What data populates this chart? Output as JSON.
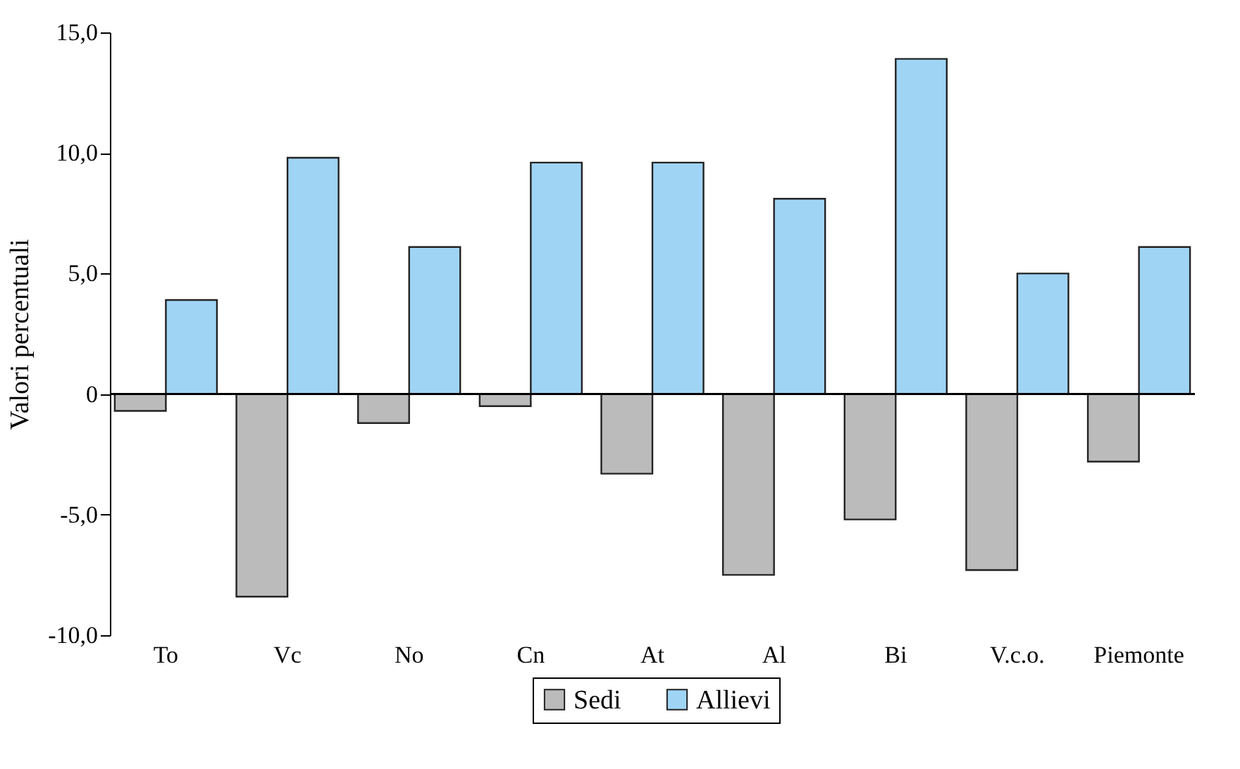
{
  "chart_data": {
    "type": "bar",
    "ylabel": "Valori percentuali",
    "categories": [
      "To",
      "Vc",
      "No",
      "Cn",
      "At",
      "Al",
      "Bi",
      "V.c.o.",
      "Piemonte"
    ],
    "series": [
      {
        "name": "Sedi",
        "color": "#bbbbbb",
        "values": [
          -0.7,
          -8.4,
          -1.2,
          -0.5,
          -3.3,
          -7.5,
          -5.2,
          -7.3,
          -2.8
        ]
      },
      {
        "name": "Allievi",
        "color": "#a0d4f4",
        "values": [
          3.9,
          9.8,
          6.1,
          9.6,
          9.6,
          8.1,
          13.9,
          5.0,
          6.1
        ]
      }
    ],
    "ylim": [
      -10,
      15
    ],
    "yticks": [
      {
        "value": -10,
        "label": "-10,0"
      },
      {
        "value": -5,
        "label": "-5,0"
      },
      0,
      {
        "value": 5,
        "label": "5,0"
      },
      {
        "value": 10,
        "label": "10,0"
      },
      {
        "value": 15,
        "label": "15,0"
      }
    ],
    "ref_lines": [
      {
        "axis": "y",
        "value": 0
      }
    ],
    "grid": false,
    "legend": "bottom"
  }
}
